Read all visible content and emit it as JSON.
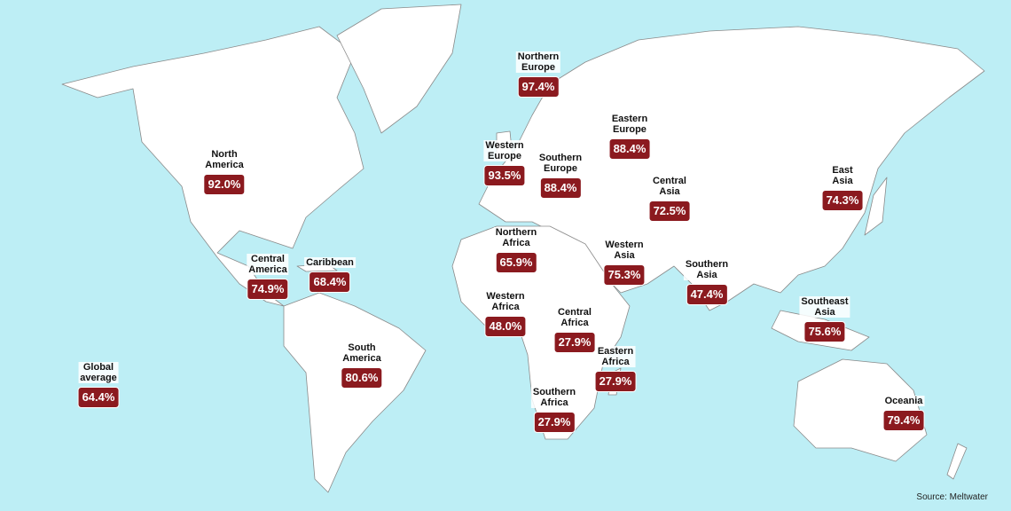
{
  "colors": {
    "ocean": "#bdeef5",
    "land": "#ffffff",
    "badge": "#8b1a1f"
  },
  "regions": [
    {
      "name": "North America",
      "value": "92.0%"
    },
    {
      "name": "Central America",
      "value": "74.9%"
    },
    {
      "name": "Caribbean",
      "value": "68.4%"
    },
    {
      "name": "South America",
      "value": "80.6%"
    },
    {
      "name": "Global average",
      "value": "64.4%"
    },
    {
      "name": "Northern Europe",
      "value": "97.4%"
    },
    {
      "name": "Western Europe",
      "value": "93.5%"
    },
    {
      "name": "Southern Europe",
      "value": "88.4%"
    },
    {
      "name": "Eastern Europe",
      "value": "88.4%"
    },
    {
      "name": "Central Asia",
      "value": "72.5%"
    },
    {
      "name": "East Asia",
      "value": "74.3%"
    },
    {
      "name": "Northern Africa",
      "value": "65.9%"
    },
    {
      "name": "Western Asia",
      "value": "75.3%"
    },
    {
      "name": "Southern Asia",
      "value": "47.4%"
    },
    {
      "name": "Western Africa",
      "value": "48.0%"
    },
    {
      "name": "Central Africa",
      "value": "27.9%"
    },
    {
      "name": "Eastern Africa",
      "value": "27.9%"
    },
    {
      "name": "Southern Africa",
      "value": "27.9%"
    },
    {
      "name": "Southeast Asia",
      "value": "75.6%"
    },
    {
      "name": "Oceania",
      "value": "79.4%"
    }
  ],
  "source": "Source: Meltwater"
}
